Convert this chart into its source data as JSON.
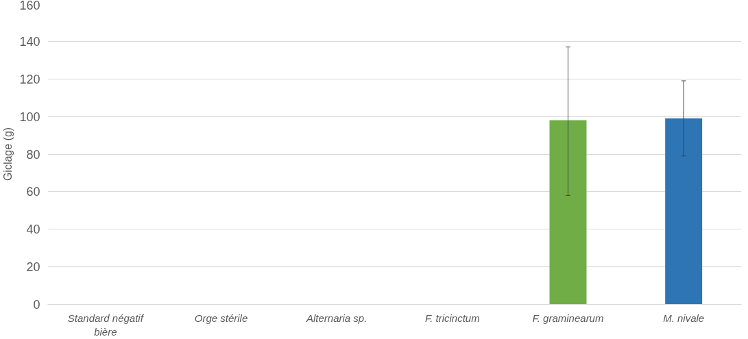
{
  "chart_data": {
    "type": "bar",
    "ylabel": "Giclage (g)",
    "categories": [
      "Standard négatif bière",
      "Orge stérile",
      "Alternaria sp.",
      "F. tricinctum",
      "F. graminearum",
      "M. nivale"
    ],
    "values": [
      0,
      0,
      0,
      0,
      98,
      99
    ],
    "colors": [
      "#70ad47",
      "#70ad47",
      "#70ad47",
      "#70ad47",
      "#70ad47",
      "#2e75b6"
    ],
    "errors": [
      null,
      null,
      null,
      null,
      [
        58,
        137
      ],
      [
        79,
        119
      ]
    ],
    "ylim": [
      0,
      160
    ],
    "yticks": [
      0,
      20,
      40,
      60,
      80,
      100,
      120,
      140,
      160
    ],
    "grid": "y"
  }
}
